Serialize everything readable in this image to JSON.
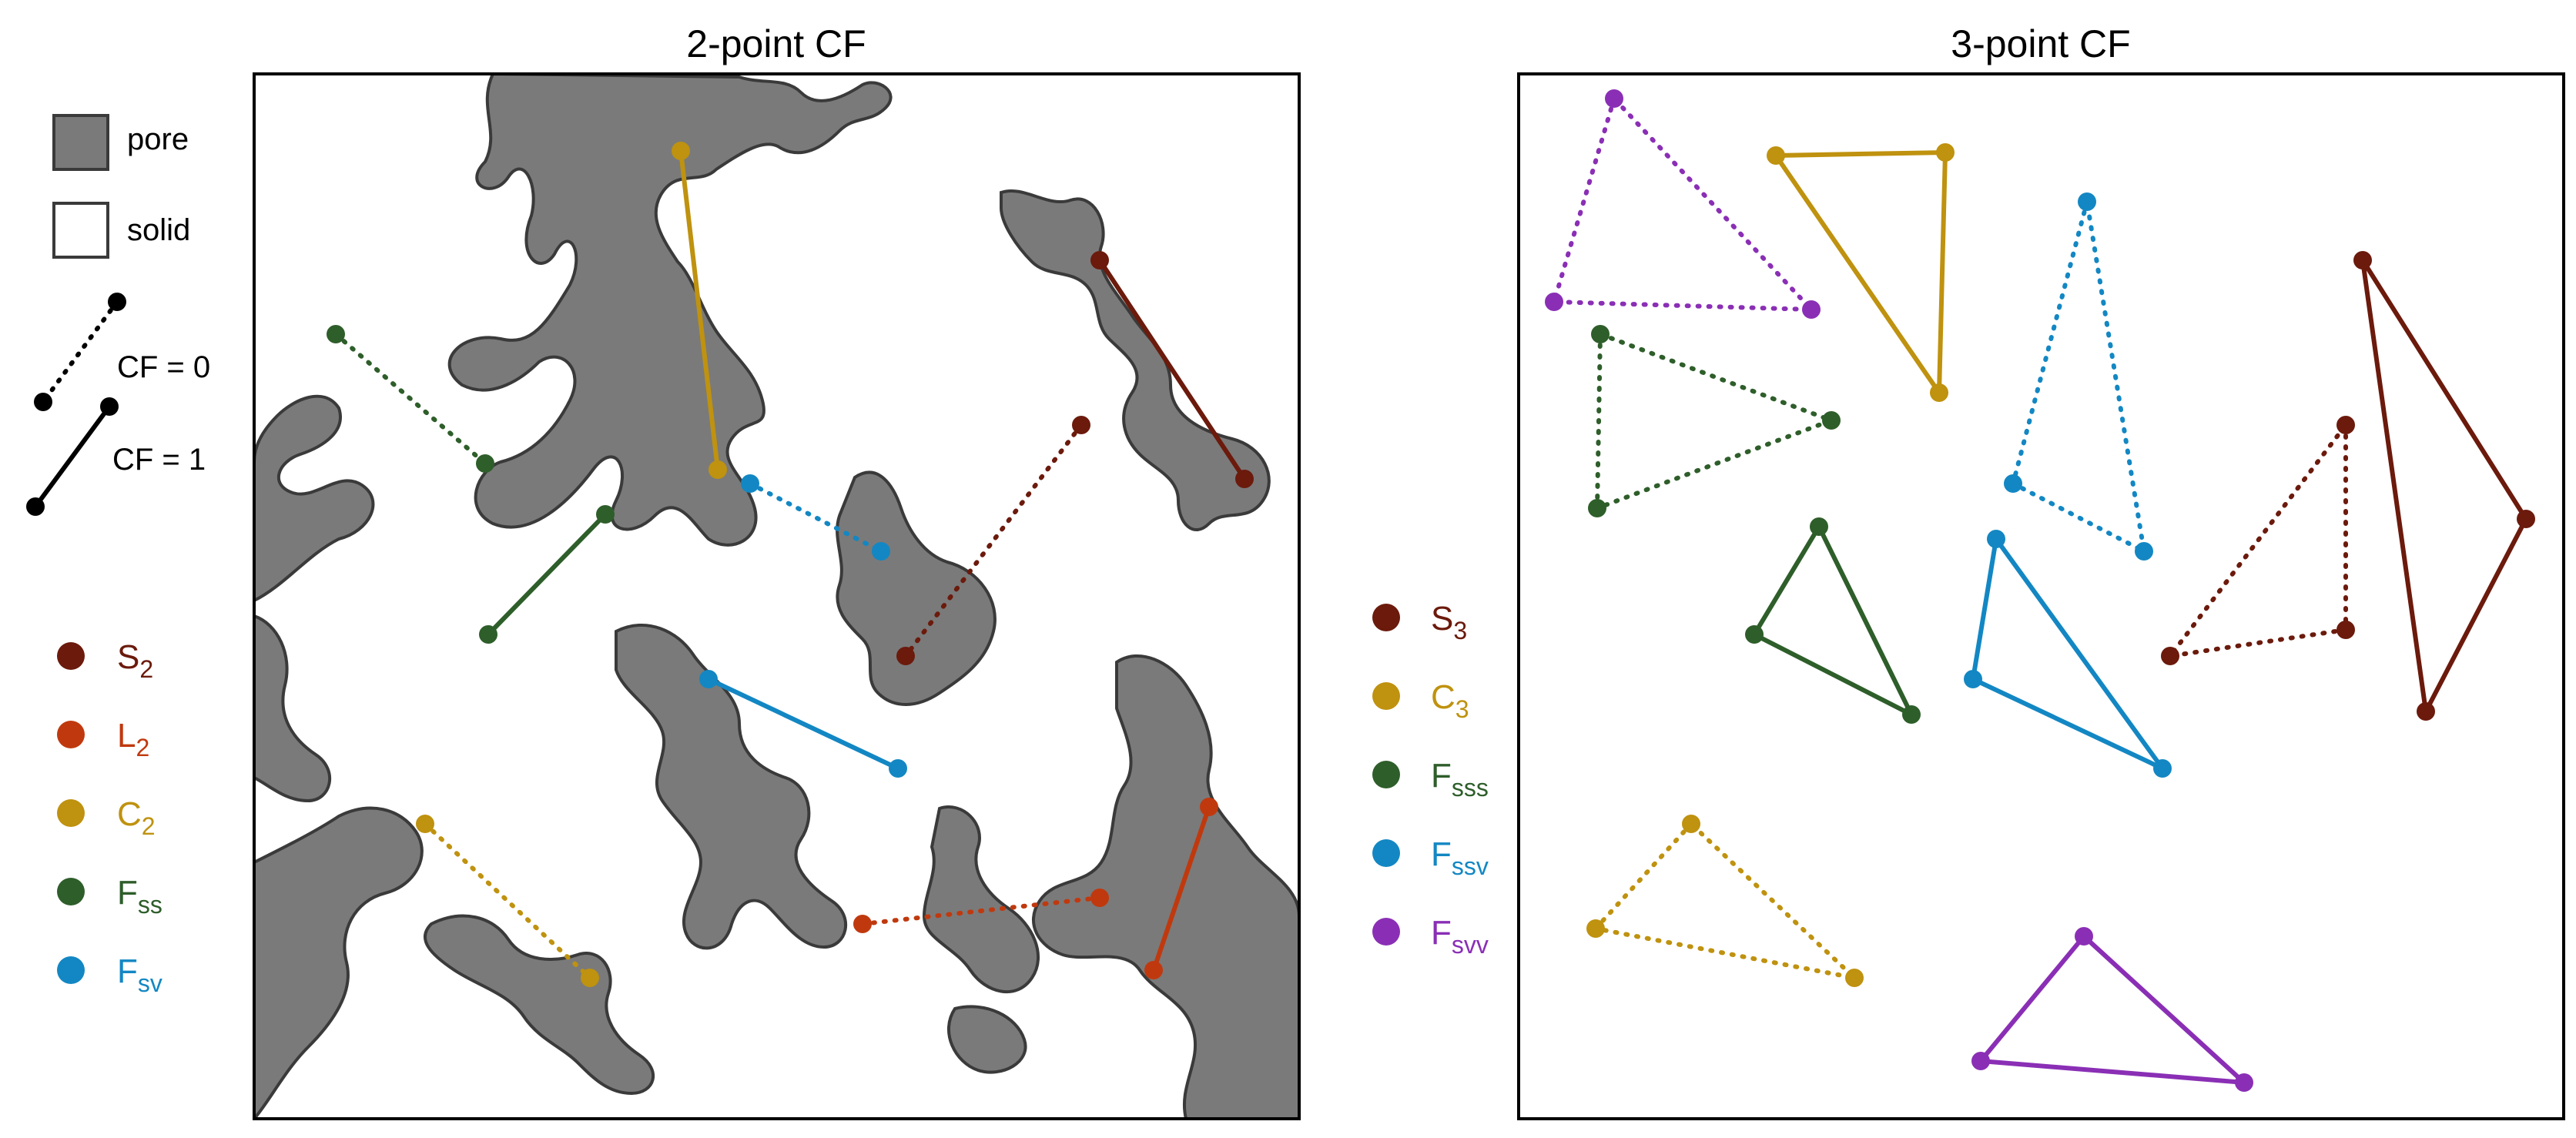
{
  "panels": {
    "left_title": "2-point CF",
    "right_title": "3-point CF"
  },
  "legend_top": {
    "pore": "pore",
    "solid": "solid",
    "cf0": "CF = 0",
    "cf1": "CF = 1"
  },
  "legend_left": [
    {
      "base": "S",
      "sub": "2",
      "color": "#6b1a0c"
    },
    {
      "base": "L",
      "sub": "2",
      "color": "#c0390e"
    },
    {
      "base": "C",
      "sub": "2",
      "color": "#bf920f"
    },
    {
      "base": "F",
      "sub": "ss",
      "color": "#2e5e2a"
    },
    {
      "base": "F",
      "sub": "sv",
      "color": "#1387c3"
    }
  ],
  "legend_right": [
    {
      "base": "S",
      "sub": "3",
      "color": "#6b1a0c"
    },
    {
      "base": "C",
      "sub": "3",
      "color": "#bf920f"
    },
    {
      "base": "F",
      "sub": "sss",
      "color": "#2e5e2a"
    },
    {
      "base": "F",
      "sub": "ssv",
      "color": "#1387c3"
    },
    {
      "base": "F",
      "sub": "svv",
      "color": "#8a2fb5"
    }
  ],
  "colors": {
    "pore_fill": "#7a7a7a",
    "pore_stroke": "#3a3a3a",
    "frame": "#000000"
  }
}
